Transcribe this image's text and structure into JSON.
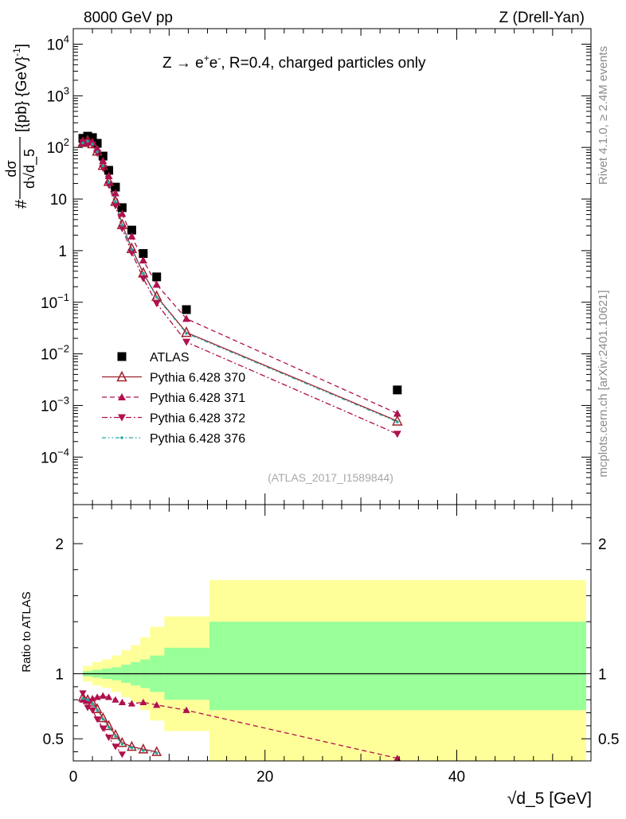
{
  "header": {
    "left": "8000 GeV pp",
    "right": "Z (Drell-Yan)"
  },
  "side_labels": {
    "rivet": "Rivet 4.1.0, ≥ 2.4M events",
    "mcplots": "mcplots.cern.ch [arXiv:2401.10621]"
  },
  "chart_data": [
    {
      "type": "scatter",
      "panel": "main",
      "title_parts": {
        "lead": "Z → e",
        "sup1": "+",
        "mid": "e",
        "sup2": "-",
        "tail": ", R=0.4, charged particles only"
      },
      "reference": "(ATLAS_2017_I1589844)",
      "ylabel_parts": {
        "prefix": "#",
        "num": "dσ",
        "den": "d√d_5",
        "unit": "[{pb} {GeV}",
        "unit_sup": "-1",
        "unit_close": "]"
      },
      "xlabel": "√d_5 [GeV]",
      "xlim": [
        0,
        54
      ],
      "ylim": [
        1.2e-05,
        20000
      ],
      "yscale": "log",
      "ytick_labels": [
        {
          "base": "10",
          "exp": "4",
          "value": 10000
        },
        {
          "base": "10",
          "exp": "3",
          "value": 1000
        },
        {
          "base": "10",
          "exp": "2",
          "value": 100
        },
        {
          "base": "10",
          "exp": "",
          "value": 10
        },
        {
          "base": "1",
          "exp": "",
          "value": 1
        },
        {
          "base": "10",
          "exp": "−1",
          "value": 0.1
        },
        {
          "base": "10",
          "exp": "−2",
          "value": 0.01
        },
        {
          "base": "10",
          "exp": "−3",
          "value": 0.001
        },
        {
          "base": "10",
          "exp": "−4",
          "value": 0.0001
        }
      ],
      "legend_position": "middle-left",
      "series": [
        {
          "name": "ATLAS",
          "marker": "square",
          "color": "#000000",
          "x": [
            1.0,
            1.5,
            2.0,
            2.5,
            3.1,
            3.7,
            4.4,
            5.1,
            6.1,
            7.3,
            8.7,
            11.8,
            33.8
          ],
          "y": [
            150,
            165,
            155,
            120,
            68,
            36,
            17,
            6.8,
            2.5,
            0.88,
            0.31,
            0.072,
            0.002
          ]
        },
        {
          "name": "Pythia 6.428 370",
          "marker": "open-triangle-up",
          "color": "#a0202c",
          "line": "solid",
          "x": [
            1.0,
            1.5,
            2.0,
            2.5,
            3.1,
            3.7,
            4.4,
            5.1,
            6.1,
            7.3,
            8.7,
            11.8,
            33.8
          ],
          "y": [
            125,
            135,
            118,
            85,
            45,
            22,
            9.0,
            3.2,
            1.1,
            0.37,
            0.13,
            0.026,
            0.0005
          ]
        },
        {
          "name": "Pythia 6.428 371",
          "marker": "filled-triangle-up",
          "color": "#b0104e",
          "line": "dashed",
          "x": [
            1.0,
            1.5,
            2.0,
            2.5,
            3.1,
            3.7,
            4.4,
            5.1,
            6.1,
            7.3,
            8.7,
            11.8,
            33.8
          ],
          "y": [
            120,
            130,
            125,
            95,
            55,
            28,
            13,
            5.2,
            1.9,
            0.65,
            0.22,
            0.048,
            0.0007
          ]
        },
        {
          "name": "Pythia 6.428 372",
          "marker": "filled-triangle-down",
          "color": "#b0104e",
          "line": "dashdot",
          "x": [
            1.0,
            1.5,
            2.0,
            2.5,
            3.1,
            3.7,
            4.4,
            5.1,
            6.1,
            7.3,
            8.7,
            11.8,
            33.8
          ],
          "y": [
            125,
            122,
            112,
            78,
            40,
            19,
            7.5,
            2.7,
            0.92,
            0.29,
            0.095,
            0.017,
            0.00028
          ]
        },
        {
          "name": "Pythia 6.428 376",
          "marker": "star",
          "color": "#20a8a0",
          "line": "dashdotdot",
          "x": [
            1.0,
            1.5,
            2.0,
            2.5,
            3.1,
            3.7,
            4.4,
            5.1,
            6.1,
            7.3,
            8.7,
            11.8,
            33.8
          ],
          "y": [
            122,
            132,
            116,
            82,
            44,
            21,
            8.8,
            3.1,
            1.05,
            0.36,
            0.125,
            0.025,
            0.00048
          ]
        }
      ]
    },
    {
      "type": "scatter",
      "panel": "ratio",
      "ylabel": "Ratio to ATLAS",
      "xlim": [
        0,
        54
      ],
      "ylim": [
        0.33,
        2.3
      ],
      "ytick_labels": [
        "0.5",
        "1",
        "2"
      ],
      "ytick_values": [
        0.5,
        1,
        2
      ],
      "xtick_labels": [
        "0",
        "20",
        "40"
      ],
      "xtick_values": [
        0,
        20,
        40
      ],
      "bands": {
        "bin_edges": [
          1,
          2,
          3,
          4,
          5,
          6,
          7,
          8,
          9.5,
          14.2,
          53.5
        ],
        "inner_up": [
          1.02,
          1.03,
          1.04,
          1.05,
          1.07,
          1.09,
          1.11,
          1.14,
          1.2,
          1.4
        ],
        "inner_down": [
          0.98,
          0.97,
          0.96,
          0.95,
          0.93,
          0.91,
          0.89,
          0.86,
          0.8,
          0.72
        ],
        "outer_up": [
          1.06,
          1.09,
          1.11,
          1.14,
          1.18,
          1.22,
          1.28,
          1.36,
          1.44,
          1.72
        ],
        "outer_down": [
          0.94,
          0.91,
          0.89,
          0.86,
          0.82,
          0.78,
          0.72,
          0.64,
          0.56,
          0.28
        ],
        "inner_color": "#99ff99",
        "outer_color": "#ffff99"
      },
      "series": [
        {
          "name": "Pythia 6.428 370",
          "x": [
            1.0,
            1.5,
            2.0,
            2.5,
            3.1,
            3.7,
            4.4,
            5.1,
            6.1,
            7.3,
            8.7
          ],
          "y": [
            0.82,
            0.8,
            0.78,
            0.73,
            0.66,
            0.6,
            0.53,
            0.47,
            0.44,
            0.42,
            0.4
          ]
        },
        {
          "name": "Pythia 6.428 371",
          "x": [
            1.0,
            1.5,
            2.0,
            2.5,
            3.1,
            3.7,
            4.4,
            5.1,
            6.1,
            7.3,
            8.7,
            11.8,
            33.8
          ],
          "y": [
            0.8,
            0.79,
            0.81,
            0.82,
            0.83,
            0.82,
            0.8,
            0.78,
            0.77,
            0.78,
            0.76,
            0.72,
            0.35
          ]
        },
        {
          "name": "Pythia 6.428 372",
          "x": [
            1.0,
            1.5,
            2.0,
            2.5,
            3.1,
            3.7,
            4.4,
            5.1
          ],
          "y": [
            0.85,
            0.74,
            0.72,
            0.65,
            0.58,
            0.51,
            0.44,
            0.38
          ]
        },
        {
          "name": "Pythia 6.428 376",
          "x": [
            1.0,
            1.5,
            2.0,
            2.5,
            3.1,
            3.7,
            4.4,
            5.1,
            6.1,
            7.3,
            8.7
          ],
          "y": [
            0.81,
            0.8,
            0.77,
            0.72,
            0.65,
            0.59,
            0.52,
            0.46,
            0.43,
            0.41,
            0.39
          ]
        }
      ]
    }
  ]
}
